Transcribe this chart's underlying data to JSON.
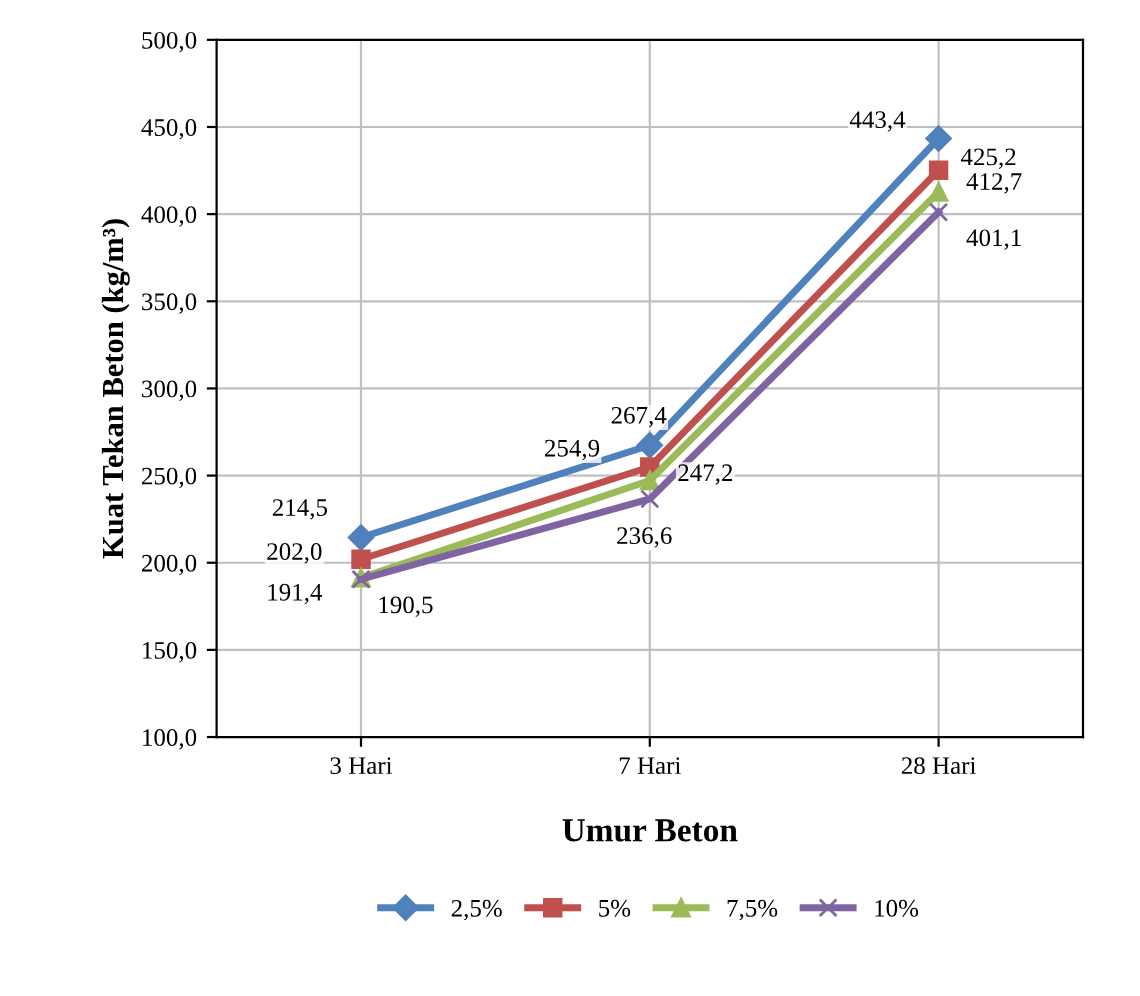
{
  "chart_data": {
    "type": "line",
    "xlabel": "Umur Beton",
    "ylabel": "Kuat Tekan Beton (kg/m³)",
    "categories": [
      "3 Hari",
      "7 Hari",
      "28 Hari"
    ],
    "series": [
      {
        "name": "2,5%",
        "color": "#4f81bd",
        "marker": "diamond",
        "values": [
          214.5,
          267.4,
          443.4
        ],
        "value_labels": [
          "214,5",
          "267,4",
          "443,4"
        ]
      },
      {
        "name": "5%",
        "color": "#c0504d",
        "marker": "square",
        "values": [
          202.0,
          254.9,
          425.2
        ],
        "value_labels": [
          "202,0",
          "254,9",
          "425,2"
        ]
      },
      {
        "name": "7,5%",
        "color": "#9bbb59",
        "marker": "triangle",
        "values": [
          191.4,
          247.2,
          412.7
        ],
        "value_labels": [
          "191,4",
          "247,2",
          "412,7"
        ]
      },
      {
        "name": "10%",
        "color": "#8064a2",
        "marker": "cross",
        "values": [
          190.5,
          236.6,
          401.1
        ],
        "value_labels": [
          "190,5",
          "236,6",
          "401,1"
        ]
      }
    ],
    "ylim": [
      100,
      500
    ],
    "yticks": [
      {
        "value": 100,
        "label": "100,0"
      },
      {
        "value": 150,
        "label": "150,0"
      },
      {
        "value": 200,
        "label": "200,0"
      },
      {
        "value": 250,
        "label": "250,0"
      },
      {
        "value": 300,
        "label": "300,0"
      },
      {
        "value": 350,
        "label": "350,0"
      },
      {
        "value": 400,
        "label": "400,0"
      },
      {
        "value": 450,
        "label": "450,0"
      },
      {
        "value": 500,
        "label": "500,0"
      }
    ],
    "grid": true,
    "legend": "bottom"
  }
}
